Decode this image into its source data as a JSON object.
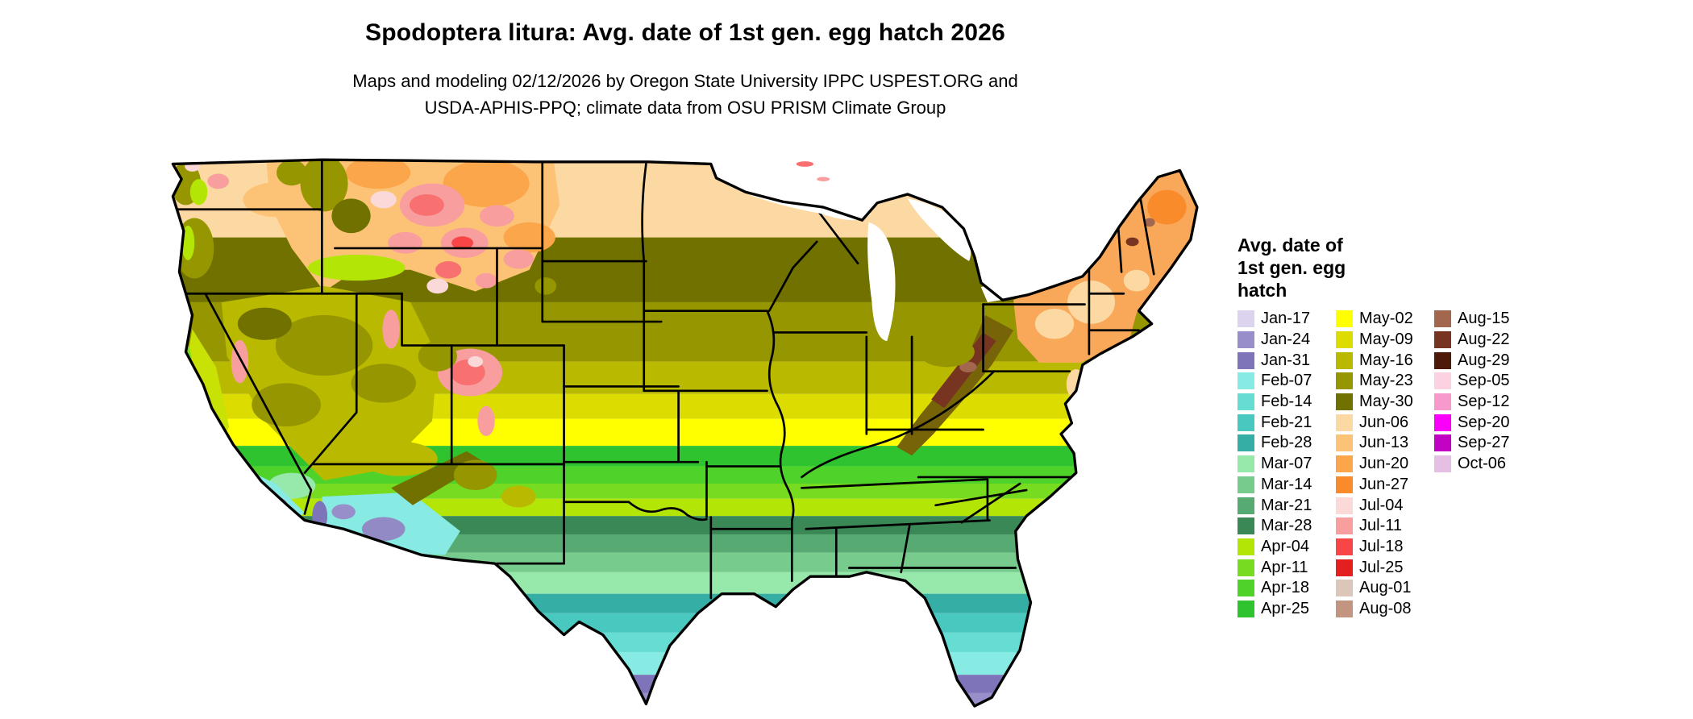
{
  "header": {
    "title": "Spodoptera litura: Avg. date of 1st gen. egg hatch 2026",
    "subtitle_line1": "Maps and modeling 02/12/2026 by Oregon State University IPPC USPEST.ORG and",
    "subtitle_line2": "USDA-APHIS-PPQ; climate data from OSU PRISM Climate Group"
  },
  "map": {
    "region": "Continental United States (lower 48 states)",
    "outline_color": "#000000",
    "background_color": "#ffffff"
  },
  "legend": {
    "title_line1": "Avg. date of",
    "title_line2": "1st gen. egg",
    "title_line3": "hatch",
    "columns": [
      {
        "entries": [
          {
            "label": "Jan-17",
            "color": "#dcd3ee"
          },
          {
            "label": "Jan-24",
            "color": "#988fca"
          },
          {
            "label": "Jan-31",
            "color": "#7d74ba"
          },
          {
            "label": "Feb-07",
            "color": "#87ebe3"
          },
          {
            "label": "Feb-14",
            "color": "#65ddd3"
          },
          {
            "label": "Feb-21",
            "color": "#48c8bf"
          },
          {
            "label": "Feb-28",
            "color": "#35aea6"
          },
          {
            "label": "Mar-07",
            "color": "#97e8ab"
          },
          {
            "label": "Mar-14",
            "color": "#76cb8d"
          },
          {
            "label": "Mar-21",
            "color": "#57aa71"
          },
          {
            "label": "Mar-28",
            "color": "#398856"
          },
          {
            "label": "Apr-04",
            "color": "#b3e606"
          },
          {
            "label": "Apr-11",
            "color": "#77dc20"
          },
          {
            "label": "Apr-18",
            "color": "#4fd32a"
          },
          {
            "label": "Apr-25",
            "color": "#2fc42f"
          }
        ]
      },
      {
        "entries": [
          {
            "label": "May-02",
            "color": "#ffff00"
          },
          {
            "label": "May-09",
            "color": "#dcdc00"
          },
          {
            "label": "May-16",
            "color": "#b9b900"
          },
          {
            "label": "May-23",
            "color": "#969600"
          },
          {
            "label": "May-30",
            "color": "#717100"
          },
          {
            "label": "Jun-06",
            "color": "#fcd9a2"
          },
          {
            "label": "Jun-13",
            "color": "#fcc377"
          },
          {
            "label": "Jun-20",
            "color": "#fca64c"
          },
          {
            "label": "Jun-27",
            "color": "#f98b2b"
          },
          {
            "label": "Jul-04",
            "color": "#fcd9d9"
          },
          {
            "label": "Jul-11",
            "color": "#f99e9e"
          },
          {
            "label": "Jul-18",
            "color": "#f84646"
          },
          {
            "label": "Jul-25",
            "color": "#e31f1f"
          },
          {
            "label": "Aug-01",
            "color": "#dcc6ba"
          },
          {
            "label": "Aug-08",
            "color": "#c39581"
          }
        ]
      },
      {
        "entries": [
          {
            "label": "Aug-15",
            "color": "#a2674e"
          },
          {
            "label": "Aug-22",
            "color": "#763421"
          },
          {
            "label": "Aug-29",
            "color": "#4d1a0a"
          },
          {
            "label": "Sep-05",
            "color": "#fcd2e2"
          },
          {
            "label": "Sep-12",
            "color": "#f899cb"
          },
          {
            "label": "Sep-20",
            "color": "#fa00fa"
          },
          {
            "label": "Sep-27",
            "color": "#c303c3"
          },
          {
            "label": "Oct-06",
            "color": "#e6bfe4"
          }
        ]
      }
    ]
  }
}
